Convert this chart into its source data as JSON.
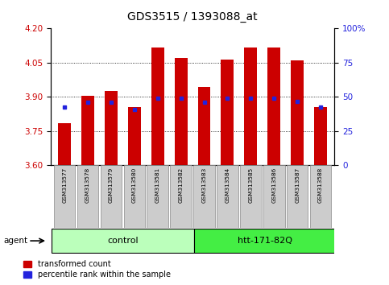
{
  "title": "GDS3515 / 1393088_at",
  "samples": [
    "GSM313577",
    "GSM313578",
    "GSM313579",
    "GSM313580",
    "GSM313581",
    "GSM313582",
    "GSM313583",
    "GSM313584",
    "GSM313585",
    "GSM313586",
    "GSM313587",
    "GSM313588"
  ],
  "red_values": [
    3.785,
    3.905,
    3.925,
    3.855,
    4.115,
    4.07,
    3.945,
    4.065,
    4.115,
    4.115,
    4.06,
    3.855
  ],
  "blue_values": [
    3.855,
    3.875,
    3.875,
    3.845,
    3.895,
    3.895,
    3.875,
    3.895,
    3.895,
    3.895,
    3.88,
    3.855
  ],
  "ylim_left": [
    3.6,
    4.2
  ],
  "ylim_right": [
    0,
    100
  ],
  "yticks_left": [
    3.6,
    3.75,
    3.9,
    4.05,
    4.2
  ],
  "yticks_right": [
    0,
    25,
    50,
    75,
    100
  ],
  "groups": [
    {
      "label": "control",
      "n_samples": 6,
      "color": "#bbffbb"
    },
    {
      "label": "htt-171-82Q",
      "n_samples": 6,
      "color": "#44ee44"
    }
  ],
  "agent_label": "agent",
  "bar_color": "#cc0000",
  "blue_color": "#2222dd",
  "bar_width": 0.55,
  "baseline": 3.6,
  "tick_label_color_left": "#cc0000",
  "tick_label_color_right": "#2222dd",
  "legend_items": [
    "transformed count",
    "percentile rank within the sample"
  ],
  "sample_box_color": "#cccccc"
}
